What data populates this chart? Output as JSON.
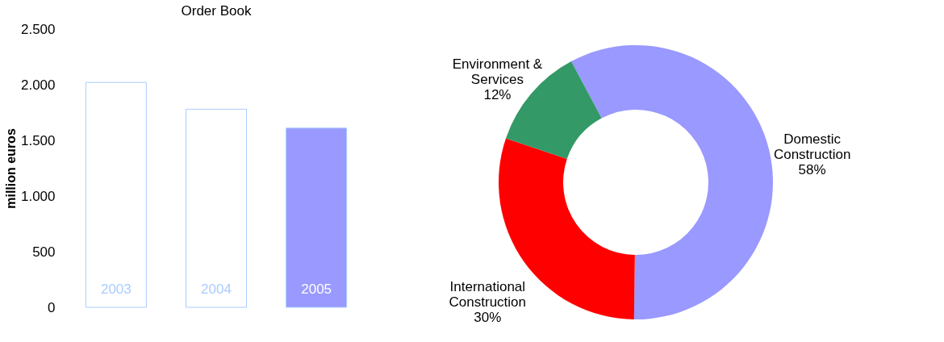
{
  "chart_data": [
    {
      "type": "bar",
      "title": "Order Book",
      "ylabel": "million euros",
      "categories": [
        "2003",
        "2004",
        "2005"
      ],
      "values": [
        2020,
        1780,
        1610
      ],
      "colors": [
        "#ffffff",
        "#ffffff",
        "#9999ff"
      ],
      "ylim": [
        0,
        2500
      ],
      "yticks": [
        {
          "value": 0,
          "label": "0"
        },
        {
          "value": 500,
          "label": "500"
        },
        {
          "value": 1000,
          "label": "1.000"
        },
        {
          "value": 1500,
          "label": "1.500"
        },
        {
          "value": 2000,
          "label": "2.000"
        },
        {
          "value": 2500,
          "label": "2.500"
        }
      ],
      "grid": false,
      "legend": false
    },
    {
      "type": "donut",
      "categories": [
        "Domestic Construction",
        "International Construction",
        "Environment & Services"
      ],
      "values": [
        58,
        30,
        12
      ],
      "value_labels": [
        "58%",
        "30%",
        "12%"
      ],
      "colors": [
        "#9999ff",
        "#ff0000",
        "#339966"
      ],
      "legend": false
    }
  ]
}
